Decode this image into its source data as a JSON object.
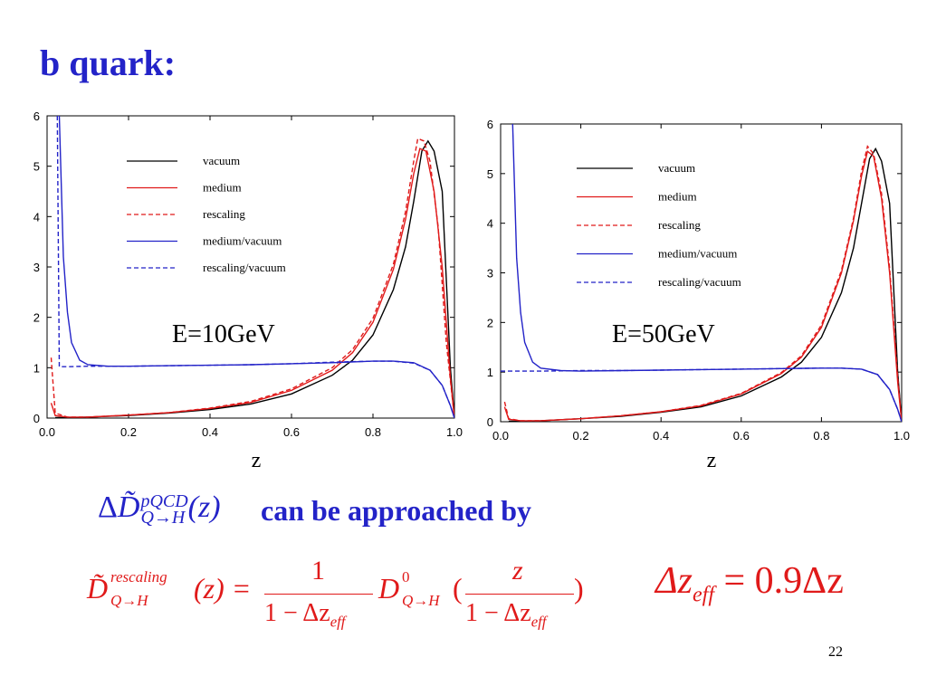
{
  "slide": {
    "title": "b quark:",
    "sentence": "can be approached by",
    "page_number": "22",
    "math": {
      "lhs_delta": "Δ",
      "lhs_D": "D̃",
      "lhs_sup": "pQCD",
      "lhs_sub": "Q→H",
      "lhs_arg": "(z)",
      "resc_D": "D̃",
      "resc_sup": "rescaling",
      "resc_sub": "Q→H",
      "resc_arg": "(z) =",
      "frac1_num": "1",
      "frac1_den": "1 − Δz",
      "frac1_den_sub": "eff",
      "D0": "D",
      "D0_sup": "0",
      "D0_sub": "Q→H",
      "open_paren": "(",
      "frac2_num": "z",
      "frac2_den": "1 − Δz",
      "frac2_den_sub": "eff",
      "close_paren": ")",
      "dz_lhs": "Δz",
      "dz_sub": "eff",
      "dz_rhs": "= 0.9Δz"
    }
  },
  "colors": {
    "title": "#2323c8",
    "vacuum": "#000000",
    "medium": "#e01a1a",
    "ratio": "#2323c8",
    "formula_red": "#e01a1a"
  },
  "chart_data": [
    {
      "type": "line",
      "annotation": "E=10GeV",
      "xlabel": "z",
      "ylabel": "",
      "xlim": [
        0,
        1
      ],
      "ylim": [
        0,
        6
      ],
      "x_ticks": [
        "0.0",
        "0.2",
        "0.4",
        "0.6",
        "0.8",
        "1.0"
      ],
      "y_ticks": [
        "0",
        "1",
        "2",
        "3",
        "4",
        "5",
        "6"
      ],
      "legend_position": "top-left-center",
      "series": [
        {
          "name": "vacuum",
          "style": "solid",
          "color": "#000000",
          "x": [
            0.02,
            0.05,
            0.1,
            0.2,
            0.3,
            0.4,
            0.5,
            0.6,
            0.7,
            0.75,
            0.8,
            0.85,
            0.88,
            0.9,
            0.92,
            0.935,
            0.95,
            0.97,
            0.99,
            1.0
          ],
          "y": [
            0.01,
            0.01,
            0.02,
            0.05,
            0.1,
            0.17,
            0.28,
            0.48,
            0.85,
            1.15,
            1.65,
            2.55,
            3.4,
            4.3,
            5.3,
            5.5,
            5.3,
            4.5,
            1.0,
            0.0
          ]
        },
        {
          "name": "medium",
          "style": "solid",
          "color": "#e01a1a",
          "x": [
            0.01,
            0.02,
            0.05,
            0.1,
            0.2,
            0.3,
            0.4,
            0.5,
            0.6,
            0.7,
            0.75,
            0.8,
            0.85,
            0.88,
            0.9,
            0.915,
            0.93,
            0.95,
            0.97,
            0.99,
            1.0
          ],
          "y": [
            0.3,
            0.05,
            0.02,
            0.02,
            0.06,
            0.11,
            0.19,
            0.31,
            0.55,
            0.95,
            1.3,
            1.9,
            2.95,
            3.95,
            4.85,
            5.35,
            5.3,
            4.5,
            3.0,
            0.8,
            0.0
          ]
        },
        {
          "name": "rescaling",
          "style": "dashed",
          "color": "#e01a1a",
          "x": [
            0.01,
            0.02,
            0.05,
            0.1,
            0.2,
            0.3,
            0.4,
            0.5,
            0.6,
            0.7,
            0.75,
            0.8,
            0.85,
            0.88,
            0.9,
            0.91,
            0.925,
            0.94,
            0.96,
            0.98,
            1.0
          ],
          "y": [
            1.2,
            0.1,
            0.02,
            0.02,
            0.06,
            0.11,
            0.2,
            0.33,
            0.58,
            1.0,
            1.36,
            1.98,
            3.05,
            4.1,
            5.1,
            5.55,
            5.5,
            5.1,
            3.8,
            1.5,
            0.0
          ]
        },
        {
          "name": "medium/vacuum",
          "style": "solid",
          "color": "#2323c8",
          "x": [
            0.03,
            0.04,
            0.05,
            0.06,
            0.08,
            0.1,
            0.15,
            0.2,
            0.3,
            0.4,
            0.5,
            0.6,
            0.7,
            0.8,
            0.85,
            0.9,
            0.94,
            0.97,
            0.99,
            1.0
          ],
          "y": [
            6.2,
            3.2,
            2.1,
            1.5,
            1.15,
            1.06,
            1.03,
            1.03,
            1.04,
            1.05,
            1.06,
            1.08,
            1.1,
            1.13,
            1.13,
            1.1,
            0.95,
            0.65,
            0.25,
            0.0
          ]
        },
        {
          "name": "rescaling/vacuum",
          "style": "dashed",
          "color": "#2323c8",
          "x": [
            0.025,
            0.03,
            0.05,
            0.1,
            0.2,
            0.3,
            0.4,
            0.5,
            0.6,
            0.7,
            0.8,
            0.85,
            0.9,
            0.94,
            0.97,
            0.99,
            1.0
          ],
          "y": [
            6.2,
            1.02,
            1.02,
            1.03,
            1.03,
            1.04,
            1.05,
            1.06,
            1.08,
            1.11,
            1.13,
            1.13,
            1.09,
            0.95,
            0.65,
            0.25,
            0.0
          ]
        }
      ]
    },
    {
      "type": "line",
      "annotation": "E=50GeV",
      "xlabel": "z",
      "ylabel": "",
      "xlim": [
        0,
        1
      ],
      "ylim": [
        0,
        6
      ],
      "x_ticks": [
        "0.0",
        "0.2",
        "0.4",
        "0.6",
        "0.8",
        "1.0"
      ],
      "y_ticks": [
        "0",
        "1",
        "2",
        "3",
        "4",
        "5",
        "6"
      ],
      "legend_position": "top-right",
      "series": [
        {
          "name": "vacuum",
          "style": "solid",
          "color": "#000000",
          "x": [
            0.02,
            0.05,
            0.1,
            0.2,
            0.3,
            0.4,
            0.5,
            0.6,
            0.7,
            0.75,
            0.8,
            0.85,
            0.88,
            0.9,
            0.92,
            0.935,
            0.95,
            0.97,
            0.99,
            1.0
          ],
          "y": [
            0.01,
            0.01,
            0.02,
            0.06,
            0.11,
            0.19,
            0.3,
            0.52,
            0.9,
            1.2,
            1.7,
            2.6,
            3.5,
            4.4,
            5.3,
            5.5,
            5.25,
            4.4,
            1.0,
            0.0
          ]
        },
        {
          "name": "medium",
          "style": "solid",
          "color": "#e01a1a",
          "x": [
            0.01,
            0.02,
            0.05,
            0.1,
            0.2,
            0.3,
            0.4,
            0.5,
            0.6,
            0.7,
            0.75,
            0.8,
            0.85,
            0.88,
            0.9,
            0.915,
            0.93,
            0.95,
            0.97,
            0.99,
            1.0
          ],
          "y": [
            0.3,
            0.05,
            0.02,
            0.02,
            0.06,
            0.12,
            0.2,
            0.32,
            0.56,
            0.97,
            1.3,
            1.9,
            3.0,
            4.05,
            4.95,
            5.45,
            5.35,
            4.5,
            3.0,
            0.8,
            0.0
          ]
        },
        {
          "name": "rescaling",
          "style": "dashed",
          "color": "#e01a1a",
          "x": [
            0.01,
            0.02,
            0.05,
            0.1,
            0.2,
            0.3,
            0.4,
            0.5,
            0.6,
            0.7,
            0.75,
            0.8,
            0.85,
            0.88,
            0.9,
            0.915,
            0.93,
            0.95,
            0.97,
            0.99,
            1.0
          ],
          "y": [
            0.4,
            0.06,
            0.02,
            0.02,
            0.06,
            0.12,
            0.2,
            0.33,
            0.57,
            0.99,
            1.33,
            1.95,
            3.05,
            4.1,
            5.05,
            5.55,
            5.4,
            4.6,
            3.1,
            0.9,
            0.0
          ]
        },
        {
          "name": "medium/vacuum",
          "style": "solid",
          "color": "#2323c8",
          "x": [
            0.03,
            0.04,
            0.05,
            0.06,
            0.08,
            0.1,
            0.15,
            0.2,
            0.3,
            0.4,
            0.5,
            0.6,
            0.7,
            0.8,
            0.85,
            0.9,
            0.94,
            0.97,
            0.99,
            1.0
          ],
          "y": [
            6.0,
            3.3,
            2.2,
            1.6,
            1.2,
            1.08,
            1.03,
            1.02,
            1.03,
            1.04,
            1.05,
            1.06,
            1.07,
            1.08,
            1.08,
            1.06,
            0.95,
            0.65,
            0.25,
            0.0
          ]
        },
        {
          "name": "rescaling/vacuum",
          "style": "dashed",
          "color": "#2323c8",
          "x": [
            0.0,
            0.05,
            0.1,
            0.2,
            0.3,
            0.4,
            0.5,
            0.6,
            0.7,
            0.8,
            0.85,
            0.9,
            0.94,
            0.97,
            0.99,
            1.0
          ],
          "y": [
            1.02,
            1.02,
            1.02,
            1.03,
            1.03,
            1.04,
            1.05,
            1.06,
            1.07,
            1.08,
            1.08,
            1.06,
            0.95,
            0.65,
            0.25,
            0.0
          ]
        }
      ]
    }
  ]
}
